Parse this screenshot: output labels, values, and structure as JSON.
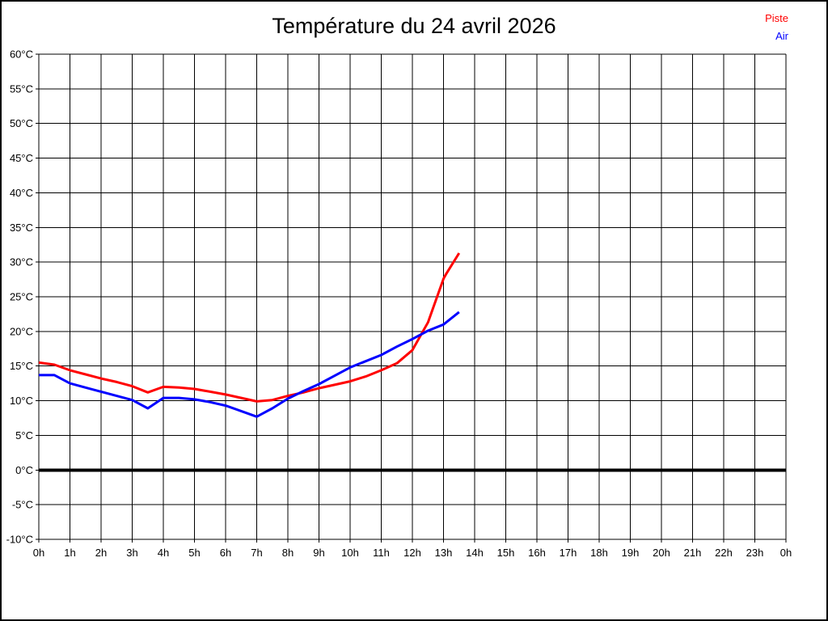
{
  "page": {
    "background": "#ffffff",
    "border_color": "#000000"
  },
  "header": {
    "title": "Température du 24 avril 2026"
  },
  "legend": {
    "position": "top-right",
    "items": [
      {
        "label": "Piste",
        "color": "#ff0000"
      },
      {
        "label": "Air",
        "color": "#0000ff"
      }
    ]
  },
  "chart_data": {
    "type": "line",
    "title": "Température du 24 avril 2026",
    "xlabel": "",
    "ylabel": "",
    "xlim": [
      0,
      24
    ],
    "ylim": [
      -10,
      60
    ],
    "grid": true,
    "grid_color": "#000000",
    "legend_position": "top-right",
    "x_ticks": [
      0,
      1,
      2,
      3,
      4,
      5,
      6,
      7,
      8,
      9,
      10,
      11,
      12,
      13,
      14,
      15,
      16,
      17,
      18,
      19,
      20,
      21,
      22,
      23,
      24
    ],
    "x_tick_labels": [
      "0h",
      "1h",
      "2h",
      "3h",
      "4h",
      "5h",
      "6h",
      "7h",
      "8h",
      "9h",
      "10h",
      "11h",
      "12h",
      "13h",
      "14h",
      "15h",
      "16h",
      "17h",
      "18h",
      "19h",
      "20h",
      "21h",
      "22h",
      "23h",
      "0h"
    ],
    "y_ticks": [
      60,
      55,
      50,
      45,
      40,
      35,
      30,
      25,
      20,
      15,
      10,
      5,
      0,
      -5,
      -10
    ],
    "y_tick_labels": [
      "60°C",
      "55°C",
      "50°C",
      "45°C",
      "40°C",
      "35°C",
      "30°C",
      "25°C",
      "20°C",
      "15°C",
      "10°C",
      "5°C",
      "0°C",
      "-5°C",
      "-10°C"
    ],
    "zero_line": {
      "value": 0,
      "color": "#000000"
    },
    "series": [
      {
        "name": "Piste",
        "color": "#ff0000",
        "x": [
          0,
          0.5,
          1,
          1.5,
          2,
          2.5,
          3,
          3.5,
          4,
          4.5,
          5,
          5.5,
          6,
          6.5,
          7,
          7.5,
          8,
          8.5,
          9,
          9.5,
          10,
          10.5,
          11,
          11.5,
          12,
          12.5,
          13,
          13.1,
          13.5
        ],
        "values": [
          15.5,
          15.2,
          14.4,
          13.8,
          13.2,
          12.7,
          12.1,
          11.2,
          12.0,
          11.9,
          11.7,
          11.3,
          10.9,
          10.4,
          9.9,
          10.1,
          10.7,
          11.2,
          11.8,
          12.3,
          12.8,
          13.5,
          14.4,
          15.4,
          17.3,
          21.3,
          27.6,
          28.4,
          31.3
        ]
      },
      {
        "name": "Air",
        "color": "#0000ff",
        "x": [
          0,
          0.5,
          1,
          1.5,
          2,
          2.5,
          3,
          3.5,
          4,
          4.5,
          5,
          5.5,
          6,
          6.5,
          7,
          7.5,
          8,
          8.5,
          9,
          9.5,
          10,
          10.5,
          11,
          11.5,
          12,
          12.5,
          13,
          13.5
        ],
        "values": [
          13.7,
          13.7,
          12.5,
          11.9,
          11.3,
          10.7,
          10.1,
          8.9,
          10.4,
          10.4,
          10.2,
          9.8,
          9.3,
          8.5,
          7.7,
          8.9,
          10.3,
          11.4,
          12.4,
          13.6,
          14.8,
          15.7,
          16.6,
          17.8,
          18.9,
          20.1,
          21.0,
          22.8
        ]
      }
    ]
  }
}
